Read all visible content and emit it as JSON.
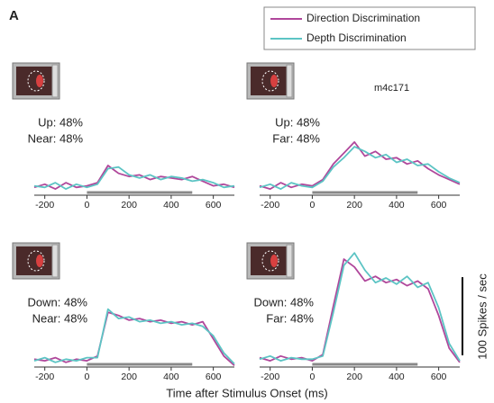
{
  "panel_label": "A",
  "cell_id": "m4c171",
  "xlabel": "Time after Stimulus Onset (ms)",
  "scale_bar": {
    "value": 100,
    "label": "100 Spikes / sec"
  },
  "chart_data": [
    {
      "type": "line",
      "conditions": [
        "Up: 48%",
        "Near: 48%"
      ],
      "x": [
        -250,
        -200,
        -150,
        -100,
        -50,
        0,
        50,
        100,
        150,
        200,
        250,
        300,
        350,
        400,
        450,
        500,
        550,
        600,
        650,
        700
      ],
      "series": [
        {
          "name": "Direction Discrimination",
          "color": "#b0479b",
          "values": [
            10,
            14,
            8,
            16,
            10,
            12,
            16,
            38,
            28,
            24,
            26,
            20,
            24,
            22,
            20,
            24,
            18,
            12,
            14,
            10
          ]
        },
        {
          "name": "Depth Discrimination",
          "color": "#5cc4c4",
          "values": [
            12,
            10,
            16,
            8,
            14,
            10,
            14,
            34,
            36,
            26,
            22,
            26,
            20,
            24,
            22,
            18,
            20,
            16,
            10,
            12
          ]
        }
      ],
      "stimulus": [
        0,
        500
      ],
      "xlim": [
        -250,
        700
      ],
      "ylim": [
        0,
        160
      ],
      "xticks": [
        -200,
        0,
        200,
        400,
        600
      ]
    },
    {
      "type": "line",
      "conditions": [
        "Up: 48%",
        "Far: 48%"
      ],
      "x": [
        -250,
        -200,
        -150,
        -100,
        -50,
        0,
        50,
        100,
        150,
        200,
        250,
        300,
        350,
        400,
        450,
        500,
        550,
        600,
        650,
        700
      ],
      "series": [
        {
          "name": "Direction Discrimination",
          "color": "#b0479b",
          "values": [
            12,
            8,
            16,
            10,
            14,
            12,
            20,
            40,
            54,
            68,
            50,
            56,
            46,
            48,
            40,
            44,
            34,
            26,
            20,
            14
          ]
        },
        {
          "name": "Depth Discrimination",
          "color": "#5cc4c4",
          "values": [
            10,
            14,
            8,
            16,
            12,
            10,
            18,
            36,
            48,
            62,
            56,
            48,
            52,
            42,
            46,
            38,
            40,
            30,
            22,
            16
          ]
        }
      ],
      "stimulus": [
        0,
        500
      ],
      "xlim": [
        -250,
        700
      ],
      "ylim": [
        0,
        160
      ],
      "xticks": [
        -200,
        0,
        200,
        400,
        600
      ]
    },
    {
      "type": "line",
      "conditions": [
        "Down: 48%",
        "Near: 48%"
      ],
      "x": [
        -250,
        -200,
        -150,
        -100,
        -50,
        0,
        50,
        100,
        150,
        200,
        250,
        300,
        350,
        400,
        450,
        500,
        550,
        600,
        650,
        700
      ],
      "series": [
        {
          "name": "Direction Discrimination",
          "color": "#b0479b",
          "values": [
            10,
            8,
            12,
            6,
            10,
            8,
            14,
            70,
            66,
            60,
            62,
            58,
            60,
            56,
            58,
            54,
            58,
            36,
            14,
            2
          ]
        },
        {
          "name": "Depth Discrimination",
          "color": "#5cc4c4",
          "values": [
            8,
            12,
            6,
            10,
            8,
            12,
            12,
            74,
            62,
            64,
            58,
            60,
            56,
            58,
            54,
            56,
            52,
            40,
            18,
            4
          ]
        }
      ],
      "stimulus": [
        0,
        500
      ],
      "xlim": [
        -250,
        700
      ],
      "ylim": [
        0,
        160
      ],
      "xticks": [
        -200,
        0,
        200,
        400,
        600
      ]
    },
    {
      "type": "line",
      "conditions": [
        "Down: 48%",
        "Far: 48%"
      ],
      "x": [
        -250,
        -200,
        -150,
        -100,
        -50,
        0,
        50,
        100,
        150,
        200,
        250,
        300,
        350,
        400,
        450,
        500,
        550,
        600,
        650,
        700
      ],
      "series": [
        {
          "name": "Direction Discrimination",
          "color": "#b0479b",
          "values": [
            12,
            8,
            14,
            10,
            12,
            8,
            16,
            78,
            138,
            128,
            110,
            116,
            108,
            112,
            104,
            110,
            100,
            66,
            24,
            6
          ]
        },
        {
          "name": "Depth Discrimination",
          "color": "#5cc4c4",
          "values": [
            10,
            14,
            8,
            12,
            10,
            10,
            14,
            70,
            130,
            146,
            124,
            108,
            114,
            106,
            116,
            102,
            108,
            76,
            30,
            8
          ]
        }
      ],
      "stimulus": [
        0,
        500
      ],
      "xlim": [
        -250,
        700
      ],
      "ylim": [
        0,
        160
      ],
      "xticks": [
        -200,
        0,
        200,
        400,
        600
      ]
    }
  ]
}
